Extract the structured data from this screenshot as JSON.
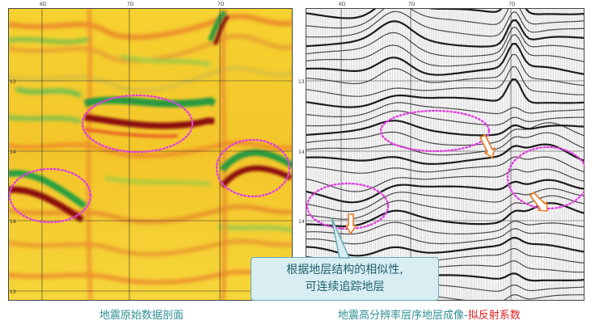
{
  "left_panel": {
    "top_ticks": [
      "6D",
      "7D",
      "7D"
    ],
    "side_ticks": [
      "13",
      "14",
      "14",
      "13"
    ]
  },
  "right_panel": {
    "top_ticks": [
      "6D",
      "7D",
      "7D"
    ],
    "side_ticks": [
      "13",
      "14",
      "14"
    ]
  },
  "callout": {
    "line1": "根据地层结构的相似性,",
    "line2": "可连续追踪地层"
  },
  "captions": {
    "left": "地震原始数据剖面",
    "right_main": "地震高分辨率层序地层成像-",
    "right_highlight": "拟反射系数"
  },
  "colors": {
    "caption_teal": "#2e8f93",
    "caption_red": "#e02020",
    "ellipse_magenta": "#e040e0",
    "arrow_orange": "#e87a20"
  }
}
